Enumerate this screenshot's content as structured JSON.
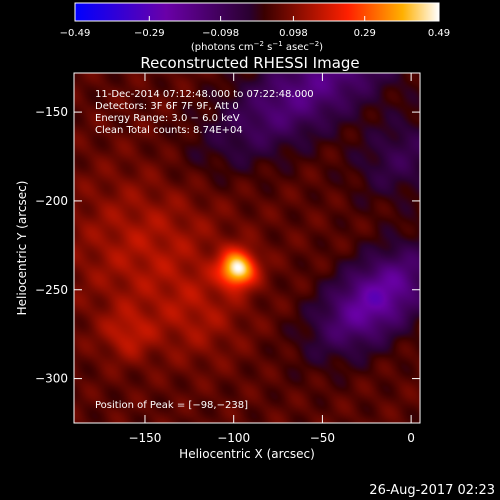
{
  "chart_data": {
    "type": "heatmap",
    "title": "Reconstructed RHESSI Image",
    "xlabel": "Heliocentric X (arcsec)",
    "ylabel": "Heliocentric Y (arcsec)",
    "xlim": [
      -190,
      5
    ],
    "ylim": [
      -325,
      -128
    ],
    "x_ticks": [
      -150,
      -100,
      -50,
      0
    ],
    "y_ticks": [
      -150,
      -200,
      -250,
      -300
    ],
    "colorbar": {
      "ticks": [
        -0.49,
        -0.29,
        -0.098,
        0.098,
        0.29,
        0.49
      ],
      "tick_labels": [
        "−0.49",
        "−0.29",
        "−0.098",
        "0.098",
        "0.29",
        "0.49"
      ],
      "range": [
        -0.49,
        0.49
      ],
      "units_base": "(photons cm",
      "units_exp1": "−2",
      "units_mid": " s",
      "units_exp2": "−1",
      "units_mid2": " asec",
      "units_exp3": "−2",
      "units_end": ")"
    },
    "annotations": [
      "11-Dec-2014 07:12:48.000 to 07:22:48.000",
      "Detectors: 3F 6F 7F 9F, Att 0",
      "Energy Range: 3.0 − 6.0 keV",
      "Clean     Total counts: 8.74E+04"
    ],
    "peak_label": "Position of Peak = [−98,−238]",
    "peak": {
      "x": -98,
      "y": -238,
      "value": 0.49
    },
    "sources": [
      {
        "x": -98,
        "y": -238,
        "sigma": 7,
        "amp": 0.42
      },
      {
        "x": -160,
        "y": -275,
        "sigma": 10,
        "amp": 0.1
      },
      {
        "x": -150,
        "y": -225,
        "sigma": 30,
        "amp": 0.1
      },
      {
        "x": -120,
        "y": -265,
        "sigma": 18,
        "amp": 0.07
      }
    ],
    "negative_regions": [
      {
        "x": -20,
        "y": -255,
        "sx": 26,
        "sy": 14,
        "angle_deg": 38,
        "amp": -0.3
      },
      {
        "x": -55,
        "y": -135,
        "sx": 45,
        "sy": 16,
        "angle_deg": 32,
        "amp": -0.22
      },
      {
        "x": -5,
        "y": -175,
        "sx": 20,
        "sy": 15,
        "angle_deg": 35,
        "amp": -0.12
      }
    ]
  },
  "footer": {
    "timestamp": "26-Aug-2017 02:23"
  }
}
